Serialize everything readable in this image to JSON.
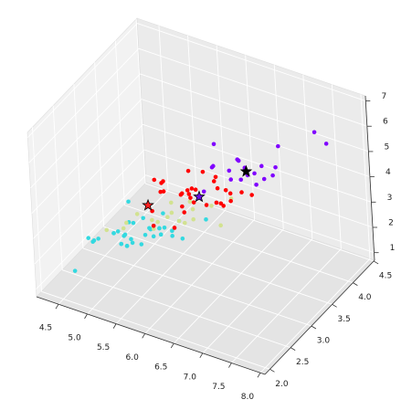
{
  "chart_data": {
    "type": "scatter3d",
    "xlim": [
      4.12,
      8.08
    ],
    "ylim": [
      1.88,
      4.52
    ],
    "zlim": [
      0.7,
      7.2
    ],
    "xticks": [
      4.5,
      {
        "value": 5,
        "label": "5.0"
      },
      5.5,
      {
        "value": 6,
        "label": "6.0"
      },
      6.5,
      {
        "value": 7,
        "label": "7.0"
      },
      7.5,
      {
        "value": 8,
        "label": "8.0"
      }
    ],
    "yticks": [
      {
        "value": 2,
        "label": "2.0"
      },
      2.5,
      {
        "value": 3,
        "label": "3.0"
      },
      3.5,
      {
        "value": 4,
        "label": "4.0"
      },
      4.5
    ],
    "zticks": [
      1,
      2,
      3,
      4,
      5,
      6,
      7
    ],
    "grid": true,
    "series": [
      {
        "color": "#33d9e0",
        "x": [
          5.1,
          4.9,
          4.7,
          4.6,
          5.0,
          4.4,
          4.8,
          4.3,
          5.7,
          5.4,
          5.1,
          5.2,
          4.8,
          5.5,
          4.9,
          5.0,
          4.5,
          4.4,
          5.0,
          5.1,
          4.8,
          4.6,
          5.3,
          5.0,
          5.2,
          4.9,
          5.4,
          4.6,
          5.0,
          5.5,
          5.7,
          5.6,
          5.5,
          6.0,
          5.8,
          5.2,
          6.2
        ],
        "y": [
          3.5,
          3.0,
          3.2,
          3.1,
          3.0,
          2.9,
          3.0,
          3.0,
          3.8,
          3.4,
          3.3,
          3.4,
          3.1,
          3.5,
          3.1,
          3.2,
          2.3,
          3.0,
          3.3,
          3.5,
          3.0,
          3.2,
          3.7,
          3.4,
          3.4,
          3.0,
          3.4,
          3.1,
          2.0,
          2.4,
          2.6,
          2.5,
          2.3,
          2.2,
          2.7,
          2.7,
          2.2
        ],
        "z": [
          1.4,
          1.4,
          1.3,
          1.5,
          1.6,
          1.4,
          1.4,
          1.1,
          1.7,
          1.5,
          1.7,
          1.4,
          1.6,
          1.3,
          1.5,
          1.2,
          1.3,
          1.3,
          1.4,
          1.4,
          1.4,
          1.4,
          1.5,
          1.5,
          1.4,
          1.4,
          1.7,
          1.5,
          3.5,
          3.8,
          3.5,
          3.9,
          4.0,
          4.0,
          3.9,
          3.9,
          4.5
        ]
      },
      {
        "color": "#d2e290",
        "x": [
          5.4,
          5.8,
          5.7,
          5.1,
          5.4,
          4.6,
          5.0,
          5.2,
          4.7,
          5.5,
          5.1,
          4.8,
          5.3,
          5.1,
          4.4,
          4.9,
          5.4,
          5.0
        ],
        "y": [
          3.9,
          4.0,
          4.4,
          3.8,
          3.9,
          3.4,
          3.6,
          4.1,
          3.2,
          4.2,
          3.8,
          3.4,
          3.7,
          3.7,
          3.2,
          3.6,
          3.7,
          3.5
        ],
        "z": [
          1.7,
          1.2,
          1.5,
          1.5,
          1.3,
          1.4,
          1.4,
          1.5,
          1.6,
          1.4,
          1.9,
          1.9,
          1.5,
          1.5,
          1.3,
          1.4,
          1.5,
          1.3
        ]
      },
      {
        "color": "#ff0000",
        "x": [
          7.0,
          6.4,
          6.9,
          6.5,
          6.3,
          6.6,
          5.9,
          6.1,
          6.7,
          5.6,
          6.2,
          5.9,
          6.1,
          6.3,
          6.6,
          6.8,
          6.7,
          6.0,
          5.7,
          6.0,
          6.7,
          6.3,
          5.6,
          6.1,
          6.4,
          6.3,
          5.8,
          6.5,
          6.0,
          5.6,
          5.7,
          6.2
        ],
        "y": [
          3.2,
          3.2,
          3.1,
          2.8,
          3.3,
          2.9,
          3.0,
          2.9,
          3.1,
          3.0,
          2.9,
          3.2,
          2.8,
          2.5,
          3.0,
          2.8,
          3.0,
          2.9,
          2.6,
          3.4,
          3.1,
          2.3,
          3.0,
          3.0,
          2.7,
          2.7,
          2.7,
          3.0,
          2.2,
          2.8,
          2.8,
          2.8
        ],
        "z": [
          4.7,
          4.5,
          4.9,
          4.6,
          4.7,
          4.6,
          4.2,
          4.7,
          4.4,
          4.5,
          4.3,
          4.8,
          4.0,
          4.9,
          4.4,
          4.8,
          5.0,
          4.5,
          3.5,
          4.5,
          4.7,
          4.4,
          4.1,
          4.6,
          5.3,
          4.9,
          5.1,
          5.2,
          5.0,
          4.9,
          4.5,
          4.8
        ]
      },
      {
        "color": "#8000ff",
        "x": [
          6.3,
          7.1,
          6.5,
          7.6,
          7.3,
          6.7,
          7.2,
          6.8,
          7.7,
          7.7,
          6.9,
          7.7,
          6.7,
          7.2,
          7.4,
          7.9,
          6.4,
          6.8,
          6.7,
          6.9
        ],
        "y": [
          3.3,
          3.0,
          3.0,
          3.0,
          2.9,
          2.5,
          3.6,
          3.0,
          3.8,
          2.6,
          3.2,
          2.8,
          3.3,
          3.2,
          2.8,
          3.8,
          3.1,
          3.2,
          3.1,
          3.1
        ],
        "z": [
          6.0,
          5.9,
          5.8,
          6.6,
          6.3,
          5.8,
          6.1,
          5.5,
          6.7,
          6.9,
          5.7,
          6.7,
          5.7,
          6.0,
          6.1,
          6.4,
          5.5,
          5.9,
          5.6,
          5.4
        ]
      },
      {
        "marker": "star",
        "colors": [
          "#ff2020",
          "#6a10e0",
          "#000000"
        ],
        "x": [
          5.0,
          6.3,
          7.0
        ],
        "y": [
          3.4,
          2.9,
          3.1
        ],
        "z": [
          2.4,
          4.6,
          5.8
        ]
      }
    ]
  }
}
